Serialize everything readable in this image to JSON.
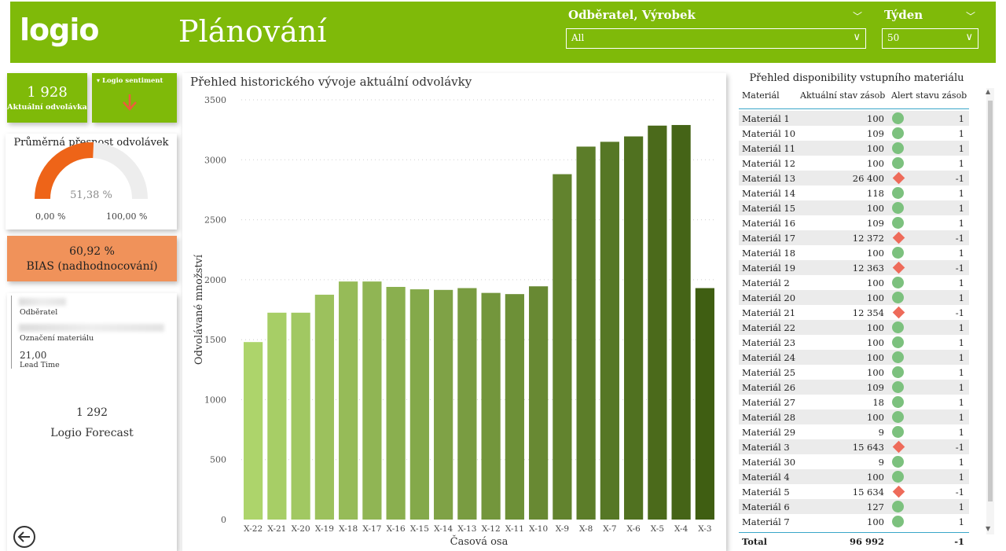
{
  "header": {
    "logo": "logio",
    "title": "Plánování",
    "slicer1": {
      "label": "Odběratel, Výrobek",
      "value": "All"
    },
    "slicer2": {
      "label": "Týden",
      "value": "50"
    }
  },
  "kpi": {
    "value": "1 928",
    "label": "Aktuální odvolávka"
  },
  "sentiment": {
    "label": "Logio sentiment",
    "icon": "arrow-down-icon"
  },
  "gauge": {
    "title": "Průměrná přesnost odvolávek",
    "value": "51,38 %",
    "min": "0,00 %",
    "max": "100,00 %",
    "fraction": 0.5138
  },
  "bias": {
    "value": "60,92 %",
    "label": "BIAS (nadhodnocování)"
  },
  "info": {
    "customer_label": "Odběratel",
    "material_label": "Označení materiálu",
    "lead_time_value": "21,00",
    "lead_time_label": "Lead Time",
    "forecast_value": "1 292",
    "forecast_label": "Logio Forecast"
  },
  "chart_data": {
    "type": "bar",
    "title": "Přehled historického vývoje aktuální odvolávky",
    "xlabel": "Časová osa",
    "ylabel": "Odvolávané množství",
    "categories": [
      "X-22",
      "X-21",
      "X-20",
      "X-19",
      "X-18",
      "X-17",
      "X-16",
      "X-15",
      "X-14",
      "X-13",
      "X-12",
      "X-11",
      "X-10",
      "X-9",
      "X-8",
      "X-7",
      "X-6",
      "X-5",
      "X-4",
      "X-3"
    ],
    "values": [
      1480,
      1725,
      1725,
      1875,
      1985,
      1985,
      1940,
      1920,
      1915,
      1930,
      1890,
      1880,
      1945,
      2880,
      3110,
      3150,
      3195,
      3285,
      3290,
      1930
    ],
    "ylim": [
      0,
      3500
    ],
    "yticks": [
      0,
      500,
      1000,
      1500,
      2000,
      2500,
      3000,
      3500
    ],
    "grid": true,
    "colors": {
      "start": "#add46b",
      "end": "#3f5e12"
    }
  },
  "table": {
    "title": "Přehled disponibility vstupního materiálu",
    "columns": [
      "Materiál",
      "Aktuální stav zásob",
      "Alert stavu zásob"
    ],
    "rows": [
      {
        "name": "Materiál 1",
        "stock": "100",
        "alert": "1",
        "ok": true
      },
      {
        "name": "Materiál 10",
        "stock": "109",
        "alert": "1",
        "ok": true
      },
      {
        "name": "Materiál 11",
        "stock": "100",
        "alert": "1",
        "ok": true
      },
      {
        "name": "Materiál 12",
        "stock": "100",
        "alert": "1",
        "ok": true
      },
      {
        "name": "Materiál 13",
        "stock": "26 400",
        "alert": "-1",
        "ok": false
      },
      {
        "name": "Materiál 14",
        "stock": "118",
        "alert": "1",
        "ok": true
      },
      {
        "name": "Materiál 15",
        "stock": "100",
        "alert": "1",
        "ok": true
      },
      {
        "name": "Materiál 16",
        "stock": "109",
        "alert": "1",
        "ok": true
      },
      {
        "name": "Materiál 17",
        "stock": "12 372",
        "alert": "-1",
        "ok": false
      },
      {
        "name": "Materiál 18",
        "stock": "100",
        "alert": "1",
        "ok": true
      },
      {
        "name": "Materiál 19",
        "stock": "12 363",
        "alert": "-1",
        "ok": false
      },
      {
        "name": "Materiál 2",
        "stock": "100",
        "alert": "1",
        "ok": true
      },
      {
        "name": "Materiál 20",
        "stock": "100",
        "alert": "1",
        "ok": true
      },
      {
        "name": "Materiál 21",
        "stock": "12 354",
        "alert": "-1",
        "ok": false
      },
      {
        "name": "Materiál 22",
        "stock": "100",
        "alert": "1",
        "ok": true
      },
      {
        "name": "Materiál 23",
        "stock": "100",
        "alert": "1",
        "ok": true
      },
      {
        "name": "Materiál 24",
        "stock": "100",
        "alert": "1",
        "ok": true
      },
      {
        "name": "Materiál 25",
        "stock": "100",
        "alert": "1",
        "ok": true
      },
      {
        "name": "Materiál 26",
        "stock": "109",
        "alert": "1",
        "ok": true
      },
      {
        "name": "Materiál 27",
        "stock": "18",
        "alert": "1",
        "ok": true
      },
      {
        "name": "Materiál 28",
        "stock": "100",
        "alert": "1",
        "ok": true
      },
      {
        "name": "Materiál 29",
        "stock": "9",
        "alert": "1",
        "ok": true
      },
      {
        "name": "Materiál 3",
        "stock": "15 643",
        "alert": "-1",
        "ok": false
      },
      {
        "name": "Materiál 30",
        "stock": "9",
        "alert": "1",
        "ok": true
      },
      {
        "name": "Materiál 4",
        "stock": "100",
        "alert": "1",
        "ok": true
      },
      {
        "name": "Materiál 5",
        "stock": "15 634",
        "alert": "-1",
        "ok": false
      },
      {
        "name": "Materiál 6",
        "stock": "127",
        "alert": "1",
        "ok": true
      },
      {
        "name": "Materiál 7",
        "stock": "100",
        "alert": "1",
        "ok": true
      }
    ],
    "total": {
      "label": "Total",
      "stock": "96 992",
      "alert": "-1"
    }
  },
  "nav": {
    "back_icon": "back-arrow-icon"
  }
}
